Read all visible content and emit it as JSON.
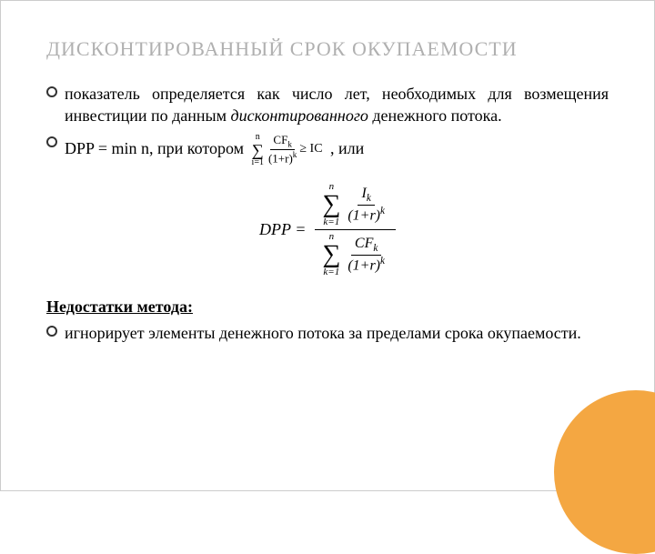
{
  "title": "ДИСКОНТИРОВАННЫЙ СРОК ОКУПАЕМОСТИ",
  "bullets": {
    "b1_p1": "показатель определяется как число лет, необходимых для возмещения инвестиции по данным ",
    "b1_italic": "дисконтированного",
    "b1_p2": " денежного потока.",
    "b2_p1": "DPP = min n, при котором ",
    "b2_p2": ", или",
    "b3": "игнорирует элементы денежного потока за пределами срока окупаемости."
  },
  "section": "Недостатки метода:",
  "formula": {
    "inline_top": "n",
    "inline_bot": "i=1",
    "inline_num": "CF",
    "inline_sub": "k",
    "inline_den1": "(1+r)",
    "inline_exp": "k",
    "inline_rel": " ≥ IC",
    "dpp": "DPP =",
    "sum_top": "n",
    "sum_bot": "k=1",
    "num1": "I",
    "num1_sub": "k",
    "den": "(1+r)",
    "den_exp": "k",
    "num2": "CF",
    "num2_sub": "k"
  },
  "colors": {
    "title": "#b0b0b0",
    "accent": "#f4a742",
    "text": "#000000",
    "bg": "#ffffff"
  }
}
